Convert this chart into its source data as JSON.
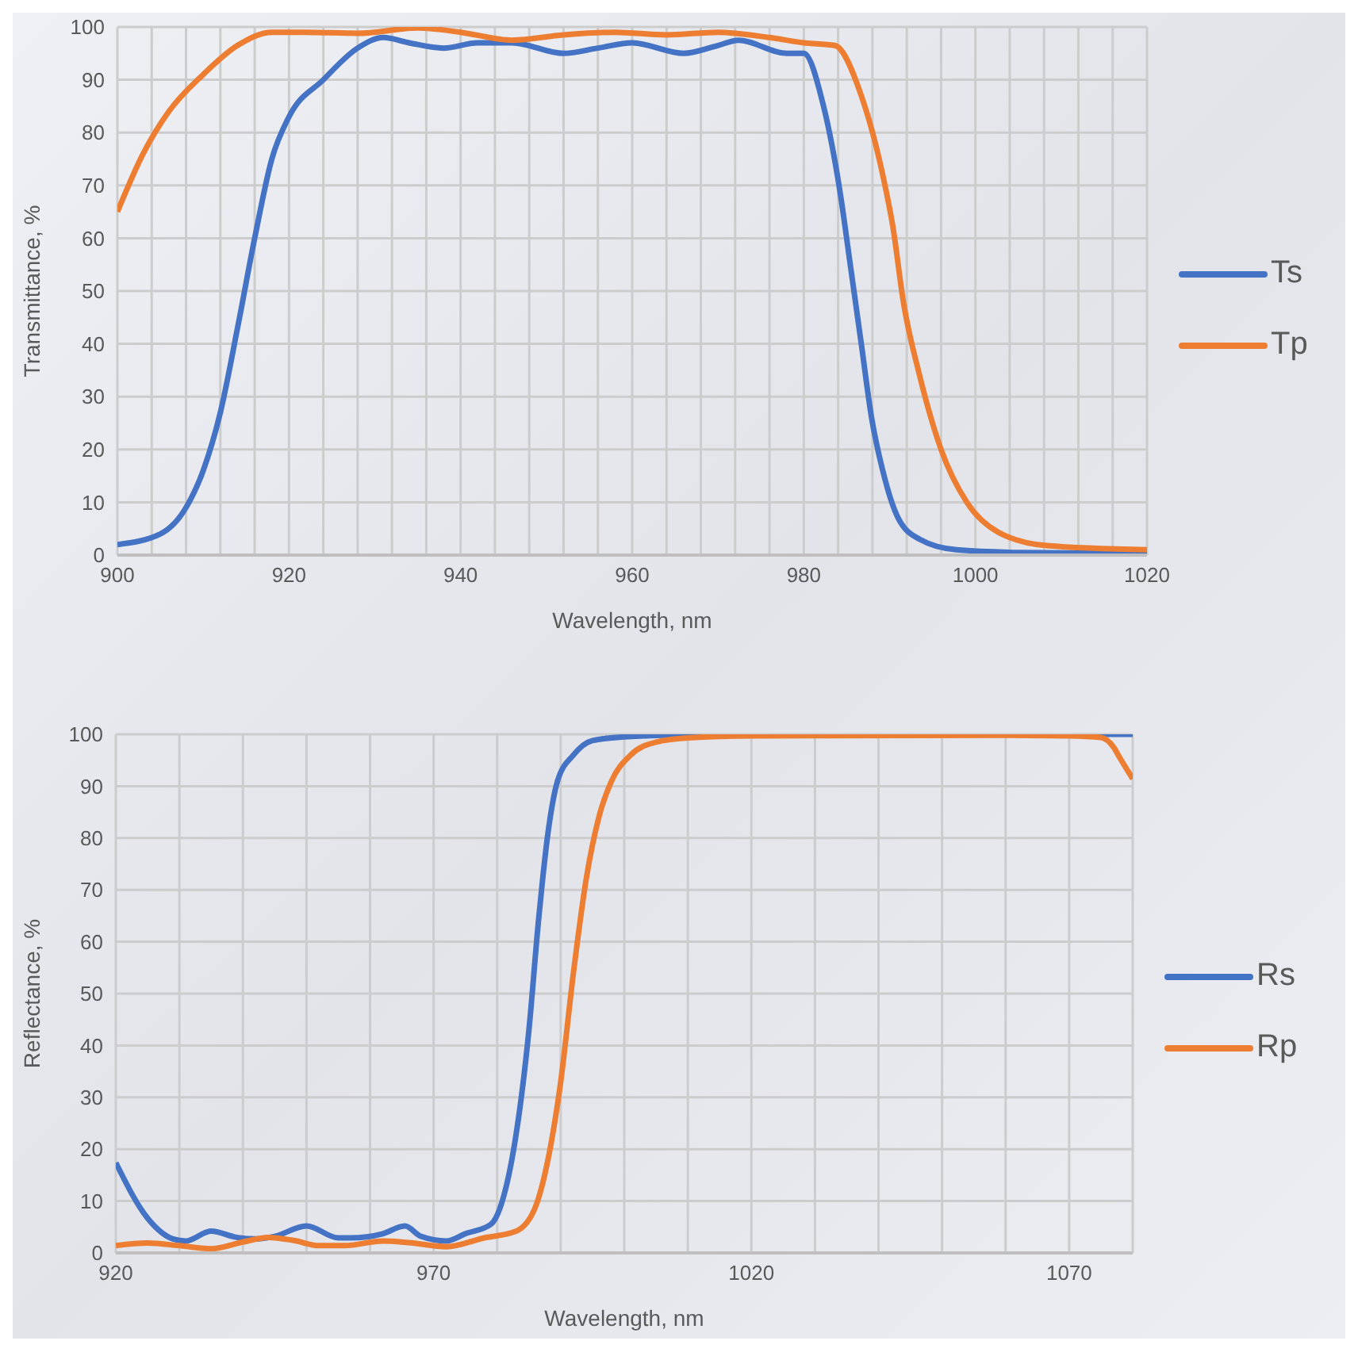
{
  "chart_data": [
    {
      "type": "line",
      "xlabel": "Wavelength, nm",
      "ylabel": "Transmittance, %",
      "xlim": [
        900,
        1020
      ],
      "xticks": [
        900,
        {
          "value": 904,
          "label": null
        },
        {
          "value": 908,
          "label": null
        },
        {
          "value": 912,
          "label": null
        },
        {
          "value": 916,
          "label": null
        },
        920,
        {
          "value": 924,
          "label": null
        },
        {
          "value": 928,
          "label": null
        },
        {
          "value": 932,
          "label": null
        },
        {
          "value": 936,
          "label": null
        },
        940,
        {
          "value": 944,
          "label": null
        },
        {
          "value": 948,
          "label": null
        },
        {
          "value": 952,
          "label": null
        },
        {
          "value": 956,
          "label": null
        },
        960,
        {
          "value": 964,
          "label": null
        },
        {
          "value": 968,
          "label": null
        },
        {
          "value": 972,
          "label": null
        },
        {
          "value": 976,
          "label": null
        },
        980,
        {
          "value": 984,
          "label": null
        },
        {
          "value": 988,
          "label": null
        },
        {
          "value": 992,
          "label": null
        },
        {
          "value": 996,
          "label": null
        },
        1000,
        {
          "value": 1004,
          "label": null
        },
        {
          "value": 1008,
          "label": null
        },
        {
          "value": 1012,
          "label": null
        },
        {
          "value": 1016,
          "label": null
        },
        1020
      ],
      "ylim": [
        0,
        100
      ],
      "yticks": [
        0,
        10,
        20,
        30,
        40,
        50,
        60,
        70,
        80,
        90,
        100
      ],
      "grid": true,
      "legend": "right",
      "series": [
        {
          "name": "Ts",
          "color": "#4472c4",
          "x": [
            900,
            905,
            908,
            910,
            912,
            914,
            916,
            918,
            920,
            924,
            928,
            931,
            934,
            938,
            942,
            946,
            952,
            956,
            960,
            966,
            970,
            972.4,
            978,
            980,
            982.3,
            984.2,
            985.5,
            986.7,
            987.9,
            989.2,
            991,
            993.5,
            997.8,
            1005,
            1020
          ],
          "values": [
            2,
            4,
            9,
            16,
            27,
            43,
            60,
            75,
            83,
            90,
            96,
            98,
            97,
            96,
            97,
            97,
            95,
            96,
            97,
            95,
            96.5,
            97.5,
            95,
            95,
            85,
            69,
            54,
            40,
            26,
            16,
            7,
            3,
            1,
            0.5,
            0.3
          ]
        },
        {
          "name": "Tp",
          "color": "#ed7d31",
          "x": [
            900,
            903,
            906,
            910,
            914,
            918,
            922,
            928,
            935,
            940,
            946,
            952,
            958,
            964,
            970,
            976,
            980,
            983.6,
            986.7,
            989.2,
            990.4,
            991.6,
            993.5,
            996,
            999,
            1002.7,
            1008.3,
            1020
          ],
          "values": [
            65,
            76,
            84,
            91,
            96.5,
            99,
            99,
            98.8,
            99.8,
            99,
            97.5,
            98.5,
            99,
            98.5,
            99,
            98,
            97,
            96.5,
            87,
            72,
            62,
            48,
            34,
            20,
            10,
            4.3,
            1.8,
            1
          ]
        }
      ]
    },
    {
      "type": "line",
      "xlabel": "Wavelength, nm",
      "ylabel": "Reflectance, %",
      "xlim": [
        920,
        1080
      ],
      "xticks": [
        920,
        {
          "value": 930,
          "label": null
        },
        {
          "value": 940,
          "label": null
        },
        {
          "value": 950,
          "label": null
        },
        {
          "value": 960,
          "label": null
        },
        970,
        {
          "value": 980,
          "label": null
        },
        {
          "value": 990,
          "label": null
        },
        {
          "value": 1000,
          "label": null
        },
        {
          "value": 1010,
          "label": null
        },
        1020,
        {
          "value": 1030,
          "label": null
        },
        {
          "value": 1040,
          "label": null
        },
        {
          "value": 1050,
          "label": null
        },
        {
          "value": 1060,
          "label": null
        },
        1070,
        {
          "value": 1080,
          "label": null
        }
      ],
      "ylim": [
        0,
        100
      ],
      "yticks": [
        0,
        10,
        20,
        30,
        40,
        50,
        60,
        70,
        80,
        90,
        100
      ],
      "grid": true,
      "legend": "right",
      "series": [
        {
          "name": "Rs",
          "color": "#4472c4",
          "x": [
            920,
            925,
            929,
            931,
            935,
            939,
            942,
            945,
            950,
            955,
            957,
            962,
            965.5,
            968,
            972,
            975,
            979,
            981,
            983,
            985,
            986.5,
            988,
            989.5,
            992,
            995,
            1000,
            1010,
            1080
          ],
          "values": [
            17.4,
            6.7,
            2.7,
            2.3,
            4.2,
            3,
            2.7,
            3.2,
            5.2,
            2.9,
            2.9,
            3.7,
            5.2,
            3.2,
            2.3,
            3.7,
            5.5,
            10.8,
            23,
            43,
            64,
            81,
            91,
            96,
            98.8,
            99.5,
            99.9,
            100
          ]
        },
        {
          "name": "Rp",
          "color": "#ed7d31",
          "x": [
            920,
            925,
            930,
            935,
            940,
            944,
            948,
            952,
            956,
            962,
            966,
            972,
            978,
            983,
            986,
            988,
            990,
            992,
            994,
            996,
            998,
            1001,
            1005,
            1010,
            1020,
            1060,
            1070,
            1075,
            1077,
            1078,
            1080
          ],
          "values": [
            1.4,
            1.9,
            1.4,
            0.8,
            2.1,
            3,
            2.4,
            1.4,
            1.4,
            2.3,
            2,
            1.2,
            2.9,
            4.2,
            8.8,
            18,
            33,
            54,
            72,
            84,
            91,
            96,
            98.5,
            99.3,
            99.7,
            99.8,
            99.7,
            99.4,
            97.5,
            95.4,
            91.4
          ]
        }
      ]
    }
  ]
}
